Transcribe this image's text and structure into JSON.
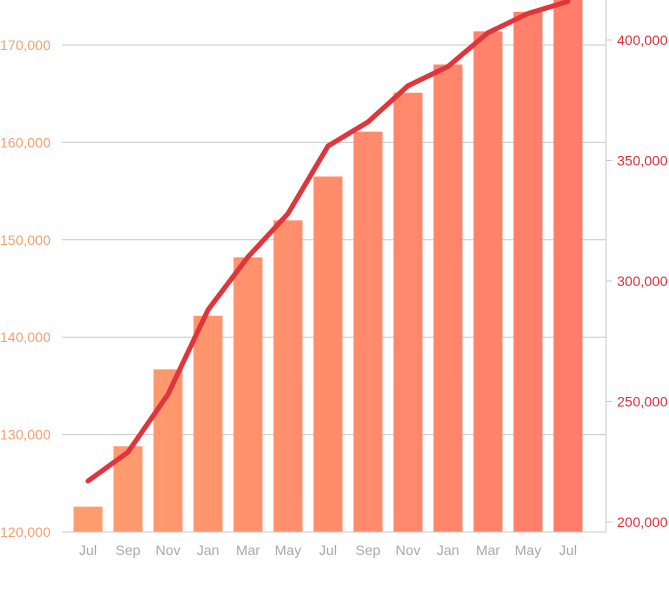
{
  "chart_data": {
    "type": "bar",
    "categories": [
      "Jul",
      "Sep",
      "Nov",
      "Jan",
      "Mar",
      "May",
      "Jul",
      "Sep",
      "Nov",
      "Jan",
      "Mar",
      "May",
      "Jul"
    ],
    "series": [
      {
        "type": "bar",
        "axis": "left",
        "values": [
          122600,
          128800,
          136700,
          142200,
          148200,
          152000,
          156500,
          161100,
          165100,
          168000,
          171400,
          173400,
          175500
        ]
      },
      {
        "type": "line",
        "axis": "right",
        "values": [
          217000,
          229000,
          253000,
          288000,
          310000,
          328000,
          356000,
          366000,
          381000,
          389000,
          403000,
          411000,
          416000
        ]
      }
    ],
    "y_left": {
      "ylim": [
        120000,
        175000
      ],
      "ticks": [
        120000,
        130000,
        140000,
        150000,
        160000,
        170000
      ],
      "tick_labels": [
        "120,000",
        "130,000",
        "140,000",
        "150,000",
        "160,000",
        "170,000"
      ]
    },
    "y_right": {
      "ylim": [
        200000,
        415000
      ],
      "ticks": [
        200000,
        250000,
        300000,
        350000,
        400000
      ],
      "tick_labels": [
        "200,000",
        "250,000",
        "300,000",
        "350,000",
        "400,000"
      ]
    },
    "grid": true,
    "colors": {
      "bar_start": "#ff9e6e",
      "bar_end": "#ff7b6a",
      "line": "#e0353d",
      "grid": "#c8c8c8",
      "left_ticks": "#f5a070",
      "right_ticks": "#e0303a",
      "x_ticks": "#a8a8a8"
    }
  }
}
